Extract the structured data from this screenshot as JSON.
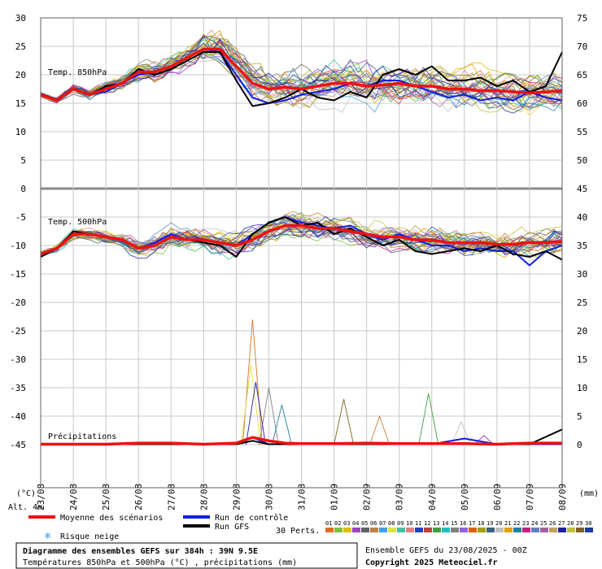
{
  "chart_data": {
    "type": "line",
    "title": "Diagramme des ensembles GEFS sur 384h : 39N 9.5E",
    "subtitle": "Températures 850hPa et 500hPa (°C) , précipitations (mm)",
    "run_info": "Ensemble GEFS du 23/08/2025 - 00Z",
    "copyright": "Copyright 2025 Meteociel.fr",
    "left_axis_unit": "(°C)",
    "right_axis_unit": "(mm)",
    "altitude_label": "Alt. 4m",
    "date_labels": [
      "23/08",
      "24/08",
      "25/08",
      "26/08",
      "27/08",
      "28/08",
      "29/08",
      "30/08",
      "31/08",
      "01/09",
      "02/09",
      "03/09",
      "04/09",
      "05/09",
      "06/09",
      "07/09",
      "08/09"
    ],
    "left_ticks": [
      "30",
      "25",
      "20",
      "15",
      "10",
      "5",
      "0",
      "-5",
      "-10",
      "-15",
      "-20",
      "-25",
      "-30",
      "-35",
      "-40",
      "-45"
    ],
    "right_ticks_top": [
      "75",
      "70",
      "65",
      "60",
      "55",
      "50",
      "45"
    ],
    "right_ticks_bottom": [
      "40",
      "35",
      "30",
      "25",
      "20",
      "15",
      "10",
      "5",
      "0"
    ],
    "panel_labels": {
      "t850": "Temp. 850hPa",
      "t500": "Temp. 500hPa",
      "precip": "Précipitations"
    },
    "legend": {
      "mean": "Moyenne des scénarios",
      "control": "Run de contrôle",
      "gfs": "Run GFS",
      "snow": "Risque neige",
      "perts": "30 Perts.",
      "pert_ids": [
        "01",
        "02",
        "03",
        "04",
        "05",
        "06",
        "07",
        "08",
        "09",
        "10",
        "11",
        "12",
        "13",
        "14",
        "15",
        "16",
        "17",
        "18",
        "19",
        "20",
        "21",
        "22",
        "23",
        "24",
        "25",
        "26",
        "27",
        "28",
        "29",
        "30"
      ],
      "pert_colors": [
        "#e07020",
        "#80c040",
        "#e0c000",
        "#a040c0",
        "#606060",
        "#c08040",
        "#40a0e0",
        "#e0e040",
        "#40c0a0",
        "#e08080",
        "#2040c0",
        "#c04040",
        "#40a040",
        "#20c0c0",
        "#808080",
        "#9060e0",
        "#e06000",
        "#a0a000",
        "#406080",
        "#c0c0c0",
        "#e0a000",
        "#2080a0",
        "#c02080",
        "#6080c0",
        "#a060a0",
        "#c0a060",
        "#2020a0",
        "#c0c040",
        "#806020",
        "#1a3aa0"
      ],
      "colors": {
        "mean": "#ee1111",
        "control": "#1020e0",
        "gfs": "#000000"
      }
    },
    "series": [
      {
        "panel": "t850",
        "name": "Moyenne des scénarios",
        "x": [
          0,
          0.5,
          1,
          1.5,
          2,
          2.5,
          3,
          3.5,
          4,
          4.5,
          5,
          5.5,
          6,
          6.5,
          7,
          7.5,
          8,
          8.5,
          9,
          9.5,
          10,
          10.5,
          11,
          11.5,
          12,
          12.5,
          13,
          13.5,
          14,
          14.5,
          15,
          15.5,
          16
        ],
        "values": [
          16.5,
          15.5,
          17.5,
          16.5,
          17.5,
          18.5,
          20.5,
          20.5,
          21.5,
          23,
          24.5,
          24.5,
          21.5,
          18.5,
          17.5,
          17.8,
          17.5,
          18,
          18.5,
          18.5,
          18,
          18.2,
          18.5,
          18,
          18,
          17.5,
          17.5,
          17.2,
          17.2,
          17.0,
          16.8,
          17.0,
          17.2
        ]
      },
      {
        "panel": "t850",
        "name": "Run de contrôle",
        "x": [
          0,
          0.5,
          1,
          1.5,
          2,
          2.5,
          3,
          3.5,
          4,
          4.5,
          5,
          5.5,
          6,
          6.5,
          7,
          7.5,
          8,
          8.5,
          9,
          9.5,
          10,
          10.5,
          11,
          11.5,
          12,
          12.5,
          13,
          13.5,
          14,
          14.5,
          15,
          15.5,
          16
        ],
        "values": [
          16.5,
          15.5,
          17.5,
          16.5,
          17,
          18.5,
          20,
          20.5,
          21.5,
          23,
          24.5,
          24,
          20,
          16,
          15,
          15.5,
          16.5,
          17,
          17.5,
          18.5,
          18,
          19,
          19,
          18,
          17,
          16,
          16.5,
          15.5,
          16,
          15.5,
          17,
          16,
          15.5
        ]
      },
      {
        "panel": "t850",
        "name": "Run GFS",
        "x": [
          0,
          0.5,
          1,
          1.5,
          2,
          2.5,
          3,
          3.5,
          4,
          4.5,
          5,
          5.5,
          6,
          6.5,
          7,
          7.5,
          8,
          8.5,
          9,
          9.5,
          10,
          10.5,
          11,
          11.5,
          12,
          12.5,
          13,
          13.5,
          14,
          14.5,
          15,
          15.5,
          16
        ],
        "values": [
          16.5,
          15.5,
          17.5,
          16.5,
          18,
          18.5,
          21,
          20,
          21,
          22.5,
          24,
          24,
          19,
          14.5,
          15,
          16,
          17.5,
          16,
          15.5,
          17,
          16,
          20,
          21,
          20,
          21.5,
          19,
          19,
          19.5,
          18,
          19,
          17,
          18,
          24
        ]
      },
      {
        "panel": "t500",
        "name": "Moyenne des scénarios",
        "x": [
          0,
          0.5,
          1,
          1.5,
          2,
          2.5,
          3,
          3.5,
          4,
          4.5,
          5,
          5.5,
          6,
          6.5,
          7,
          7.5,
          8,
          8.5,
          9,
          9.5,
          10,
          10.5,
          11,
          11.5,
          12,
          12.5,
          13,
          13.5,
          14,
          14.5,
          15,
          15.5,
          16
        ],
        "values": [
          -11.5,
          -10.5,
          -8,
          -8,
          -8.5,
          -9,
          -10.5,
          -10,
          -8.5,
          -9,
          -9,
          -9.5,
          -10,
          -9,
          -7.5,
          -6.5,
          -6.5,
          -7,
          -7,
          -7.5,
          -8,
          -8.5,
          -8.5,
          -9,
          -9,
          -9.5,
          -9.5,
          -9.5,
          -9.8,
          -9.8,
          -9.5,
          -9.5,
          -9.3
        ]
      },
      {
        "panel": "t500",
        "name": "Run de contrôle",
        "x": [
          0,
          0.5,
          1,
          1.5,
          2,
          2.5,
          3,
          3.5,
          4,
          4.5,
          5,
          5.5,
          6,
          6.5,
          7,
          7.5,
          8,
          8.5,
          9,
          9.5,
          10,
          10.5,
          11,
          11.5,
          12,
          12.5,
          13,
          13.5,
          14,
          14.5,
          15,
          15.5,
          16
        ],
        "values": [
          -12,
          -10.5,
          -8,
          -8,
          -8.5,
          -9,
          -10.5,
          -9.5,
          -8,
          -9,
          -9,
          -9.5,
          -10,
          -8,
          -6,
          -5,
          -6,
          -6.5,
          -7,
          -6.5,
          -8,
          -9,
          -8,
          -9,
          -10,
          -10,
          -11,
          -10.5,
          -11,
          -11,
          -13.5,
          -11,
          -10
        ]
      },
      {
        "panel": "t500",
        "name": "Run GFS",
        "x": [
          0,
          0.5,
          1,
          1.5,
          2,
          2.5,
          3,
          3.5,
          4,
          4.5,
          5,
          5.5,
          6,
          6.5,
          7,
          7.5,
          8,
          8.5,
          9,
          9.5,
          10,
          10.5,
          11,
          11.5,
          12,
          12.5,
          13,
          13.5,
          14,
          14.5,
          15,
          15.5,
          16
        ],
        "values": [
          -12,
          -10.5,
          -7.5,
          -8,
          -8.5,
          -9,
          -10.5,
          -10,
          -8.5,
          -9,
          -9.5,
          -10,
          -12,
          -8,
          -6,
          -5,
          -6.5,
          -6,
          -8,
          -7,
          -8.5,
          -10,
          -9,
          -11,
          -11.5,
          -11,
          -10.5,
          -11,
          -10,
          -11.5,
          -12,
          -11,
          -12.5
        ]
      },
      {
        "panel": "precip",
        "name": "Moyenne des scénarios",
        "x": [
          0,
          1,
          2,
          3,
          4,
          5,
          6,
          6.5,
          7,
          7.5,
          8,
          9,
          10,
          11,
          12,
          13,
          14,
          15,
          16
        ],
        "values": [
          0,
          0,
          0,
          0.1,
          0.1,
          0,
          0.1,
          0.6,
          0.3,
          0.1,
          0.05,
          0.05,
          0.1,
          0.05,
          0.05,
          0.05,
          0,
          0.1,
          0.1
        ]
      },
      {
        "panel": "precip",
        "name": "Run de contrôle",
        "x": [
          0,
          1,
          2,
          3,
          4,
          5,
          6,
          6.5,
          7,
          7.5,
          8,
          9,
          10,
          11,
          12,
          13,
          14,
          15,
          16
        ],
        "values": [
          0,
          0,
          0,
          0,
          0,
          0,
          0,
          0.6,
          0,
          0,
          0,
          0,
          0,
          0,
          0,
          0.5,
          0,
          0,
          0
        ]
      },
      {
        "panel": "precip",
        "name": "Run GFS",
        "x": [
          0,
          1,
          2,
          3,
          4,
          5,
          6,
          6.5,
          7,
          7.5,
          8,
          9,
          10,
          11,
          12,
          13,
          14,
          15,
          16
        ],
        "values": [
          0,
          0,
          0,
          0,
          0,
          0,
          0,
          0.3,
          0,
          0,
          0,
          0,
          0,
          0,
          0,
          0,
          0,
          0,
          1.3
        ]
      }
    ]
  }
}
